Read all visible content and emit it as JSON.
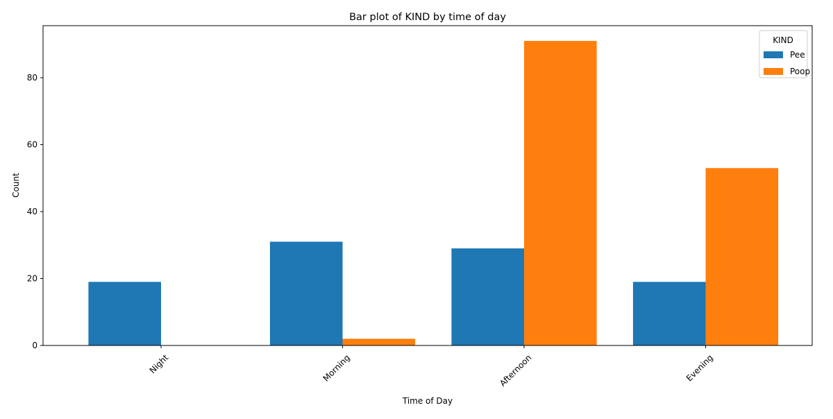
{
  "chart_data": {
    "type": "bar",
    "title": "Bar plot of KIND by time of day",
    "xlabel": "Time of Day",
    "ylabel": "Count",
    "categories": [
      "Night",
      "Morning",
      "Afternoon",
      "Evening"
    ],
    "series": [
      {
        "name": "Pee",
        "values": [
          19,
          31,
          29,
          19
        ],
        "color": "#1f77b4"
      },
      {
        "name": "Poop",
        "values": [
          0,
          2,
          91,
          53
        ],
        "color": "#ff7f0e"
      }
    ],
    "ylim": [
      0,
      95.55
    ],
    "yticks": [
      0,
      20,
      40,
      60,
      80
    ],
    "legend": {
      "title": "KIND",
      "position": "top-right"
    },
    "grid": false,
    "x_tick_rotation_deg": 45
  }
}
